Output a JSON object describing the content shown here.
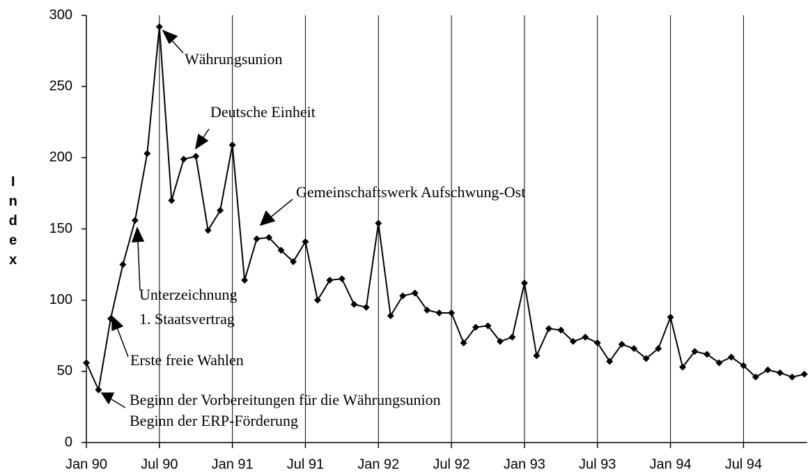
{
  "chart_data": {
    "type": "line",
    "y_label": "Index",
    "categories": [
      "Jan 90",
      null,
      null,
      null,
      null,
      null,
      "Jul 90",
      null,
      null,
      null,
      null,
      null,
      "Jan 91",
      null,
      null,
      null,
      null,
      null,
      "Jul 91",
      null,
      null,
      null,
      null,
      null,
      "Jan 92",
      null,
      null,
      null,
      null,
      null,
      "Jul 92",
      null,
      null,
      null,
      null,
      null,
      "Jan 93",
      null,
      null,
      null,
      null,
      null,
      "Jul 93",
      null,
      null,
      null,
      null,
      null,
      "Jan 94",
      null,
      null,
      null,
      null,
      null,
      "Jul 94",
      null,
      null,
      null,
      null,
      null
    ],
    "values": [
      56,
      37,
      87,
      125,
      156,
      203,
      292,
      170,
      199,
      201,
      149,
      163,
      209,
      114,
      143,
      144,
      135,
      127,
      141,
      100,
      114,
      115,
      97,
      95,
      154,
      89,
      103,
      105,
      93,
      91,
      91,
      70,
      81,
      82,
      71,
      74,
      112,
      61,
      80,
      79,
      71,
      74,
      70,
      57,
      69,
      66,
      59,
      66,
      88,
      53,
      64,
      62,
      56,
      60,
      54,
      46,
      51,
      49,
      46,
      48
    ],
    "color": "#000000",
    "ylim": [
      0,
      300
    ],
    "yticks": [
      0,
      50,
      100,
      150,
      200,
      250,
      300
    ],
    "grid": true,
    "annotations": [
      "Währungsunion",
      "Deutsche Einheit",
      "Gemeinschaftswerk Aufschwung-Ost",
      "Unterzeichnung",
      "1. Staatsvertrag",
      "Erste freie Wahlen",
      "Beginn der Vorbereitungen für die Währungsunion",
      "Beginn der ERP-Förderung"
    ]
  }
}
